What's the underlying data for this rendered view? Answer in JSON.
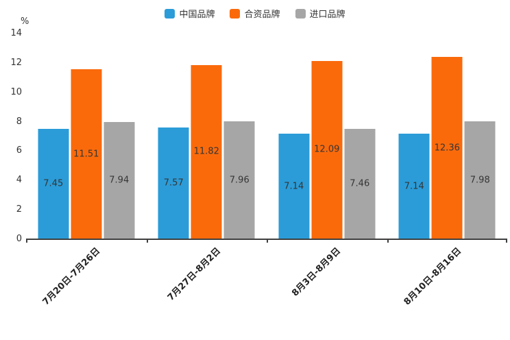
{
  "chart_data": {
    "type": "bar",
    "title": "",
    "unit_label": "%",
    "categories": [
      "7月20日-7月26日",
      "7月27日-8月2日",
      "8月3日-8月9日",
      "8月10日-8月16日"
    ],
    "series": [
      {
        "name": "中国品牌",
        "color": "#2B9CD8",
        "values": [
          7.45,
          7.57,
          7.14,
          7.14
        ]
      },
      {
        "name": "合资品牌",
        "color": "#FA6A0B",
        "values": [
          11.51,
          11.82,
          12.09,
          12.36
        ]
      },
      {
        "name": "进口品牌",
        "color": "#A6A6A6",
        "values": [
          7.94,
          7.96,
          7.46,
          7.98
        ]
      }
    ],
    "ylim": [
      0,
      14
    ],
    "yticks": [
      0,
      2,
      4,
      6,
      8,
      10,
      12,
      14
    ],
    "grid": false,
    "legend_position": "top",
    "value_labels": "inside-center"
  }
}
